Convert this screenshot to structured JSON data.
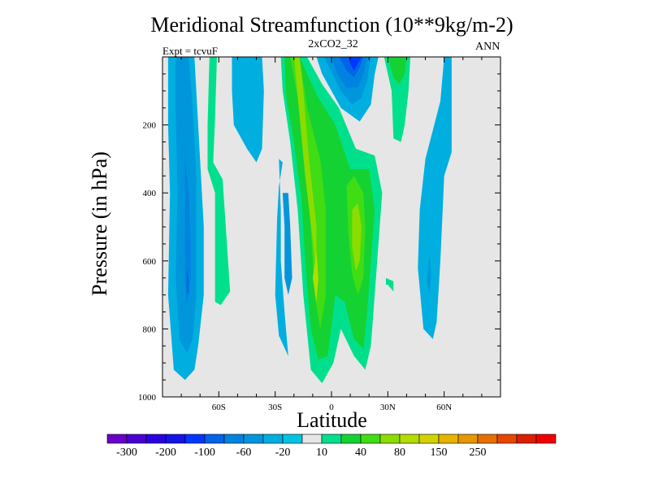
{
  "chart_data": {
    "type": "contour",
    "title": "Meridional Streamfunction (10**9kg/m-2)",
    "subtitle": "2xCO2_32",
    "left_string": "Expt = tcvuF",
    "right_string": "ANN",
    "xlabel": "Latitude",
    "ylabel": "Pressure (in hPa)",
    "xlim": [
      -90,
      90
    ],
    "ylim": [
      1000,
      0
    ],
    "x_ticks": [
      {
        "value": -60,
        "label": "60S"
      },
      {
        "value": -30,
        "label": "30S"
      },
      {
        "value": 0,
        "label": "0"
      },
      {
        "value": 30,
        "label": "30N"
      },
      {
        "value": 60,
        "label": "60N"
      }
    ],
    "y_ticks": [
      200,
      400,
      600,
      800,
      1000
    ],
    "colorbar": {
      "colors": [
        "#6a00c8",
        "#4b00d2",
        "#2b00e0",
        "#1414e8",
        "#0037ff",
        "#0063e8",
        "#0083e0",
        "#0096dc",
        "#00aee0",
        "#00c3df",
        "#e6e6e6",
        "#00e08c",
        "#14d232",
        "#40dc14",
        "#8cdc00",
        "#b4dc00",
        "#d2d200",
        "#e6b400",
        "#e69600",
        "#e66e00",
        "#e64600",
        "#dc1e00",
        "#f00000"
      ],
      "labels": [
        "-300",
        "-200",
        "-100",
        "-60",
        "-20",
        "10",
        "40",
        "80",
        "150",
        "250"
      ]
    },
    "contours": [
      {
        "name": "sh-polar-cell-l1",
        "color": "#00aee0",
        "points": [
          [
            -87,
            0
          ],
          [
            -73,
            0
          ],
          [
            -72,
            100
          ],
          [
            -70,
            300
          ],
          [
            -68,
            500
          ],
          [
            -68,
            700
          ],
          [
            -71,
            850
          ],
          [
            -73,
            920
          ],
          [
            -78,
            950
          ],
          [
            -84,
            920
          ],
          [
            -87,
            700
          ],
          [
            -86,
            400
          ],
          [
            -87,
            200
          ]
        ]
      },
      {
        "name": "sh-polar-cell-l2",
        "color": "#0096dc",
        "points": [
          [
            -83,
            0
          ],
          [
            -76,
            0
          ],
          [
            -74,
            150
          ],
          [
            -72,
            350
          ],
          [
            -72,
            550
          ],
          [
            -72,
            700
          ],
          [
            -74,
            830
          ],
          [
            -77,
            870
          ],
          [
            -81,
            830
          ],
          [
            -83,
            650
          ],
          [
            -82,
            400
          ],
          [
            -83,
            150
          ]
        ]
      },
      {
        "name": "sh-polar-cell-l3",
        "color": "#0083e0",
        "points": [
          [
            -78,
            300
          ],
          [
            -76,
            400
          ],
          [
            -75,
            550
          ],
          [
            -75,
            650
          ],
          [
            -77,
            730
          ],
          [
            -78,
            660
          ],
          [
            -78,
            500
          ]
        ]
      },
      {
        "name": "sh-polar-cell-l4",
        "color": "#0063e8",
        "points": [
          [
            -77,
            620
          ],
          [
            -76,
            660
          ],
          [
            -76,
            700
          ],
          [
            -77,
            690
          ]
        ]
      },
      {
        "name": "ferrel-green-strip",
        "color": "#00e08c",
        "points": [
          [
            -65,
            0
          ],
          [
            -61,
            0
          ],
          [
            -62,
            180
          ],
          [
            -63,
            310
          ],
          [
            -58,
            360
          ],
          [
            -54,
            690
          ],
          [
            -59,
            730
          ],
          [
            -62,
            720
          ],
          [
            -62,
            400
          ],
          [
            -66,
            330
          ],
          [
            -66,
            200
          ]
        ]
      },
      {
        "name": "sh-mid-cyan-top",
        "color": "#00aee0",
        "points": [
          [
            -53,
            0
          ],
          [
            -37,
            0
          ],
          [
            -36,
            100
          ],
          [
            -37,
            270
          ],
          [
            -40,
            310
          ],
          [
            -45,
            270
          ],
          [
            -52,
            200
          ],
          [
            -53,
            100
          ]
        ]
      },
      {
        "name": "sh-mid-cyan-lower",
        "color": "#00aee0",
        "points": [
          [
            -28,
            300
          ],
          [
            -27,
            450
          ],
          [
            -27,
            600
          ],
          [
            -25,
            750
          ],
          [
            -23,
            880
          ],
          [
            -28,
            820
          ],
          [
            -30,
            700
          ],
          [
            -29,
            480
          ],
          [
            -28,
            380
          ],
          [
            -26,
            310
          ]
        ]
      },
      {
        "name": "sh-mid-cyan-lower-l2",
        "color": "#0096dc",
        "points": [
          [
            -26,
            400
          ],
          [
            -25,
            500
          ],
          [
            -25,
            650
          ],
          [
            -23,
            700
          ],
          [
            -21,
            650
          ],
          [
            -22,
            500
          ],
          [
            -23,
            400
          ]
        ]
      },
      {
        "name": "hadley-outer",
        "color": "#00e08c",
        "points": [
          [
            -27,
            0
          ],
          [
            -13,
            0
          ],
          [
            -5,
            80
          ],
          [
            4,
            150
          ],
          [
            13,
            270
          ],
          [
            23,
            290
          ],
          [
            27,
            400
          ],
          [
            25,
            550
          ],
          [
            23,
            700
          ],
          [
            21,
            850
          ],
          [
            18,
            920
          ],
          [
            12,
            880
          ],
          [
            5,
            800
          ],
          [
            1,
            900
          ],
          [
            -5,
            960
          ],
          [
            -11,
            920
          ],
          [
            -15,
            700
          ],
          [
            -18,
            450
          ],
          [
            -22,
            250
          ],
          [
            -26,
            100
          ]
        ]
      },
      {
        "name": "hadley-l2",
        "color": "#14d232",
        "points": [
          [
            -25,
            0
          ],
          [
            -17,
            0
          ],
          [
            -8,
            110
          ],
          [
            2,
            200
          ],
          [
            10,
            330
          ],
          [
            20,
            330
          ],
          [
            23,
            450
          ],
          [
            21,
            600
          ],
          [
            19,
            750
          ],
          [
            17,
            860
          ],
          [
            12,
            830
          ],
          [
            7,
            720
          ],
          [
            2,
            700
          ],
          [
            -2,
            880
          ],
          [
            -7,
            890
          ],
          [
            -11,
            800
          ],
          [
            -14,
            600
          ],
          [
            -16,
            420
          ],
          [
            -20,
            250
          ],
          [
            -24,
            120
          ]
        ]
      },
      {
        "name": "hadley-l3-south",
        "color": "#40dc14",
        "points": [
          [
            -22,
            0
          ],
          [
            -17,
            0
          ],
          [
            -13,
            150
          ],
          [
            -6,
            300
          ],
          [
            -3,
            450
          ],
          [
            -3,
            700
          ],
          [
            -6,
            800
          ],
          [
            -9,
            700
          ],
          [
            -11,
            500
          ],
          [
            -13,
            350
          ],
          [
            -17,
            150
          ]
        ]
      },
      {
        "name": "hadley-l3-north",
        "color": "#40dc14",
        "points": [
          [
            8,
            380
          ],
          [
            12,
            350
          ],
          [
            17,
            400
          ],
          [
            18,
            500
          ],
          [
            17,
            650
          ],
          [
            14,
            700
          ],
          [
            11,
            640
          ],
          [
            9,
            520
          ]
        ]
      },
      {
        "name": "hadley-l4-south",
        "color": "#8cdc00",
        "points": [
          [
            -20,
            0
          ],
          [
            -17,
            0
          ],
          [
            -15,
            100
          ],
          [
            -12,
            300
          ],
          [
            -8,
            500
          ],
          [
            -8,
            650
          ],
          [
            -10,
            540
          ],
          [
            -14,
            350
          ]
        ]
      },
      {
        "name": "hadley-l5-core",
        "color": "#b4dc00",
        "points": [
          [
            -8,
            570
          ],
          [
            -7,
            650
          ],
          [
            -8,
            720
          ],
          [
            -10,
            650
          ]
        ]
      },
      {
        "name": "hadley-l4-north",
        "color": "#8cdc00",
        "points": [
          [
            11,
            450
          ],
          [
            14,
            430
          ],
          [
            16,
            500
          ],
          [
            15,
            600
          ],
          [
            13,
            630
          ],
          [
            11,
            560
          ]
        ]
      },
      {
        "name": "nh-small-green",
        "color": "#00e08c",
        "points": [
          [
            29,
            650
          ],
          [
            33,
            660
          ],
          [
            33,
            690
          ],
          [
            30,
            670
          ],
          [
            29,
            670
          ]
        ]
      },
      {
        "name": "tropical-blue-top",
        "color": "#00aee0",
        "points": [
          [
            -8,
            0
          ],
          [
            25,
            0
          ],
          [
            23,
            50
          ],
          [
            21,
            140
          ],
          [
            15,
            190
          ],
          [
            5,
            150
          ],
          [
            0,
            100
          ],
          [
            -5,
            50
          ]
        ]
      },
      {
        "name": "tropical-blue-l2",
        "color": "#0096dc",
        "points": [
          [
            -4,
            0
          ],
          [
            21,
            0
          ],
          [
            19,
            70
          ],
          [
            16,
            120
          ],
          [
            11,
            140
          ],
          [
            5,
            100
          ]
        ]
      },
      {
        "name": "tropical-blue-l3",
        "color": "#0083e0",
        "points": [
          [
            0,
            0
          ],
          [
            19,
            0
          ],
          [
            17,
            50
          ],
          [
            14,
            90
          ],
          [
            8,
            90
          ],
          [
            3,
            50
          ]
        ]
      },
      {
        "name": "tropical-blue-l4",
        "color": "#0063e8",
        "points": [
          [
            4,
            0
          ],
          [
            17,
            0
          ],
          [
            15,
            30
          ],
          [
            12,
            60
          ],
          [
            8,
            40
          ]
        ]
      },
      {
        "name": "tropical-blue-l5",
        "color": "#0037ff",
        "points": [
          [
            9,
            0
          ],
          [
            16,
            0
          ],
          [
            14,
            20
          ],
          [
            12,
            40
          ],
          [
            10,
            20
          ]
        ]
      },
      {
        "name": "tropical-green-n",
        "color": "#00e08c",
        "points": [
          [
            28,
            0
          ],
          [
            42,
            0
          ],
          [
            41,
            100
          ],
          [
            39,
            200
          ],
          [
            37,
            250
          ],
          [
            33,
            240
          ],
          [
            32,
            100
          ]
        ]
      },
      {
        "name": "tropical-green-n-l2",
        "color": "#14d232",
        "points": [
          [
            30,
            0
          ],
          [
            40,
            0
          ],
          [
            39,
            50
          ],
          [
            36,
            80
          ],
          [
            33,
            60
          ]
        ]
      },
      {
        "name": "nh-polar-cyan",
        "color": "#00aee0",
        "points": [
          [
            60,
            0
          ],
          [
            64,
            0
          ],
          [
            64,
            280
          ],
          [
            60,
            350
          ],
          [
            58,
            600
          ],
          [
            56,
            780
          ],
          [
            54,
            830
          ],
          [
            49,
            800
          ],
          [
            46,
            620
          ],
          [
            47,
            450
          ],
          [
            50,
            300
          ],
          [
            58,
            130
          ]
        ]
      },
      {
        "name": "nh-polar-cyan-l2",
        "color": "#0096dc",
        "points": [
          [
            52,
            580
          ],
          [
            53,
            640
          ],
          [
            52,
            700
          ],
          [
            51,
            660
          ]
        ]
      }
    ]
  }
}
